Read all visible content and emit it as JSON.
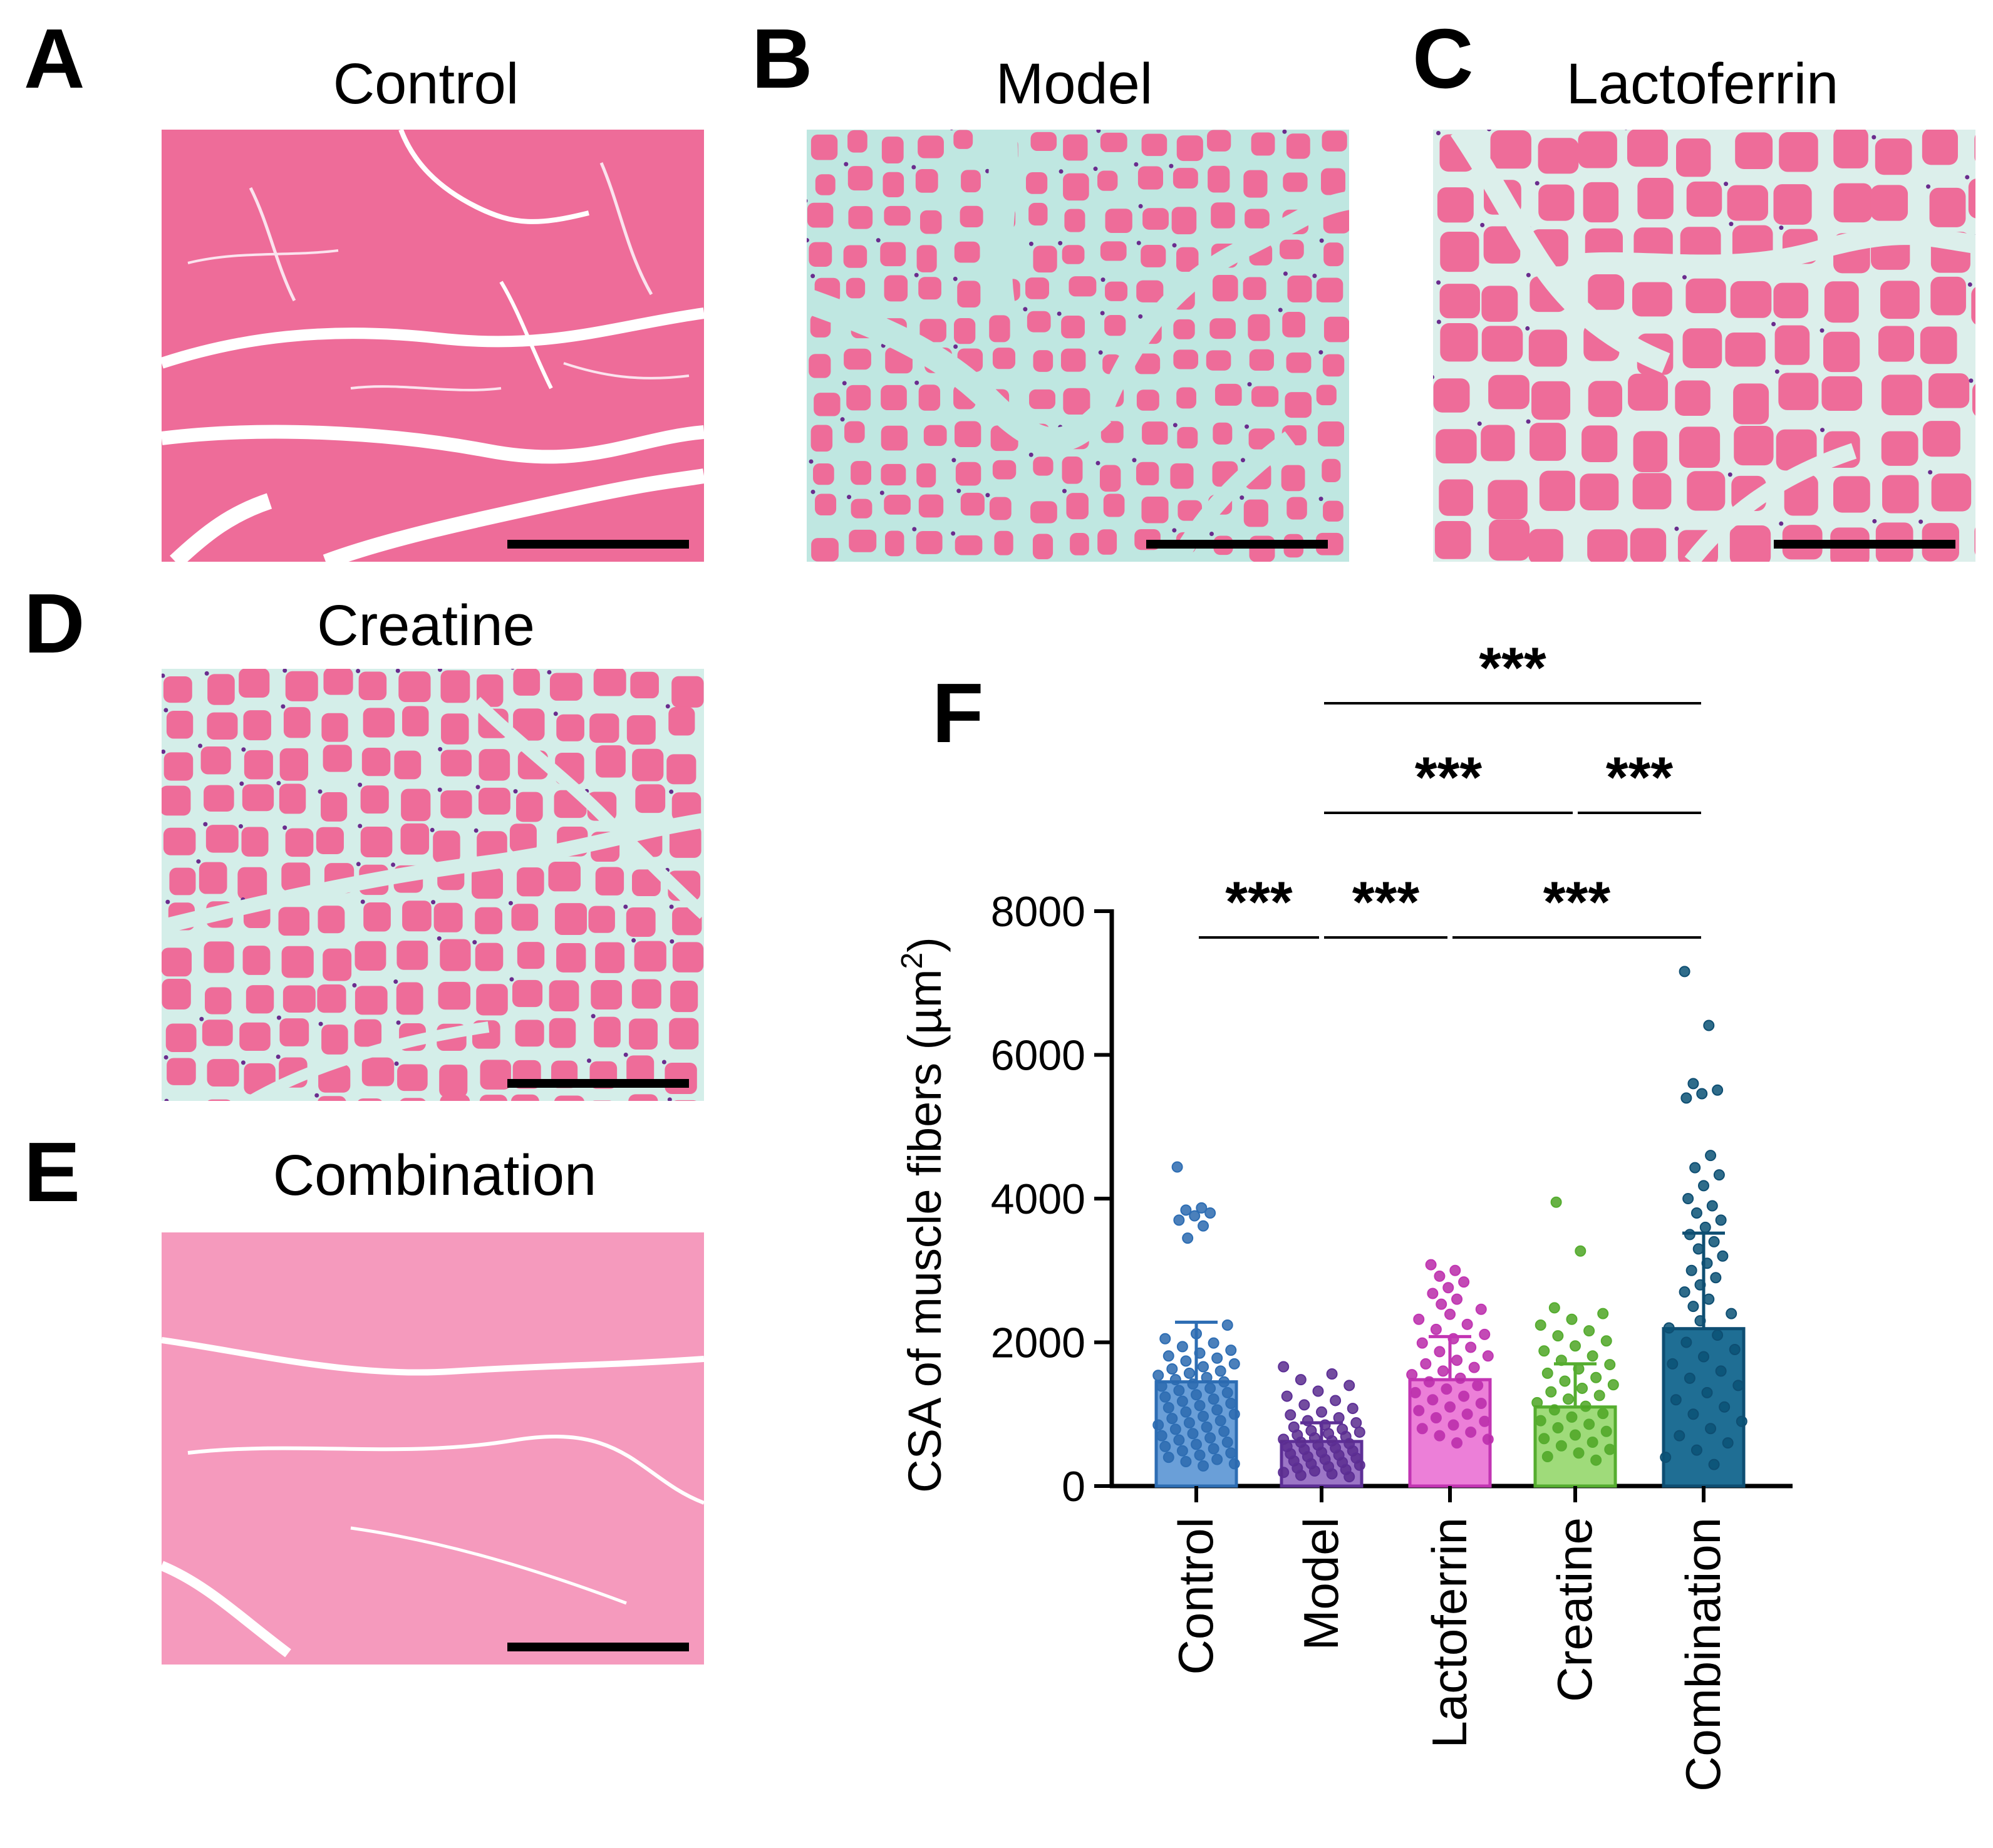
{
  "panels": [
    {
      "letter": "A",
      "title": "Control"
    },
    {
      "letter": "B",
      "title": "Model"
    },
    {
      "letter": "C",
      "title": "Lactoferrin"
    },
    {
      "letter": "D",
      "title": "Creatine"
    },
    {
      "letter": "E",
      "title": "Combination"
    }
  ],
  "chart_panel_letter": "F",
  "colors": {
    "tissue_pink": "#ee6c99",
    "tissue_pink_light": "#f59abd",
    "cell_border": "#fbe3ee",
    "interstitial_control": "#ffffff",
    "interstitial_model": "#bfe7e1",
    "interstitial_lactoferrin": "#dcefeb",
    "interstitial_creatine": "#d4eee9",
    "nuclei": "#6a2c8e",
    "scale_bar": "#000000"
  },
  "chart_data": {
    "type": "bar",
    "categories": [
      "Control",
      "Model",
      "Lactoferrin",
      "Creatine",
      "Combination"
    ],
    "values": [
      1450,
      620,
      1480,
      1100,
      2190
    ],
    "error_upper": [
      2280,
      880,
      2080,
      1700,
      3520
    ],
    "ylabel_main": "CSA of muscle fibers (µm",
    "ylabel_sup": "2",
    "ylabel_tail": ")",
    "ylim": [
      0,
      8000
    ],
    "yticks": [
      "0",
      "2000",
      "4000",
      "6000",
      "8000"
    ],
    "colors": {
      "fill": [
        "#6a9fd8",
        "#9c76c6",
        "#ec7fd8",
        "#9fdb7a",
        "#1f6e94"
      ],
      "stroke": [
        "#2d6db3",
        "#5d2f96",
        "#c235b3",
        "#55ad2f",
        "#0e4e72"
      ],
      "point": [
        "#2c6aaf",
        "#5a2d8e",
        "#b82aa8",
        "#4ea524",
        "#0b5275"
      ]
    },
    "points": [
      [
        4440,
        3870,
        3840,
        3800,
        3760,
        3700,
        3620,
        3450,
        2240,
        2120,
        2050,
        1990,
        1940,
        1890,
        1850,
        1810,
        1780,
        1740,
        1700,
        1660,
        1630,
        1600,
        1570,
        1540,
        1510,
        1480,
        1450,
        1420,
        1390,
        1360,
        1330,
        1300,
        1270,
        1240,
        1210,
        1180,
        1150,
        1120,
        1090,
        1060,
        1030,
        1000,
        970,
        940,
        910,
        880,
        850,
        820,
        790,
        760,
        730,
        700,
        670,
        640,
        610,
        580,
        550,
        520,
        490,
        460,
        430,
        400,
        370,
        340,
        310,
        280
      ],
      [
        1660,
        1560,
        1480,
        1400,
        1320,
        1250,
        1190,
        1130,
        1080,
        1030,
        990,
        950,
        910,
        880,
        850,
        820,
        790,
        770,
        750,
        730,
        710,
        690,
        670,
        650,
        630,
        610,
        590,
        570,
        550,
        530,
        510,
        490,
        470,
        450,
        430,
        410,
        390,
        370,
        350,
        330,
        310,
        290,
        270,
        250,
        230,
        210,
        190,
        170,
        150,
        130
      ],
      [
        3080,
        3000,
        2920,
        2840,
        2760,
        2680,
        2600,
        2530,
        2460,
        2390,
        2320,
        2250,
        2180,
        2110,
        2050,
        1990,
        1930,
        1870,
        1810,
        1750,
        1700,
        1650,
        1600,
        1550,
        1500,
        1450,
        1400,
        1350,
        1300,
        1250,
        1200,
        1150,
        1100,
        1050,
        1000,
        950,
        900,
        850,
        800,
        750,
        700,
        650,
        600
      ],
      [
        3950,
        3270,
        2480,
        2400,
        2320,
        2240,
        2160,
        2090,
        2020,
        1950,
        1880,
        1810,
        1750,
        1690,
        1630,
        1570,
        1510,
        1460,
        1410,
        1360,
        1310,
        1260,
        1210,
        1160,
        1110,
        1060,
        1010,
        960,
        910,
        860,
        810,
        760,
        710,
        660,
        610,
        560,
        510,
        460,
        410,
        360
      ],
      [
        7160,
        6410,
        5600,
        5510,
        5460,
        5400,
        4600,
        4430,
        4330,
        4180,
        4000,
        3900,
        3800,
        3700,
        3600,
        3500,
        3400,
        3300,
        3200,
        3100,
        3000,
        2900,
        2800,
        2700,
        2600,
        2500,
        2400,
        2300,
        2200,
        2100,
        2000,
        1900,
        1800,
        1700,
        1600,
        1500,
        1400,
        1300,
        1200,
        1100,
        1000,
        900,
        800,
        700,
        600,
        500,
        400,
        300
      ]
    ],
    "significance": [
      {
        "label": "***",
        "from": 0,
        "to": 1,
        "level": 0
      },
      {
        "label": "***",
        "from": 1,
        "to": 2,
        "level": 0
      },
      {
        "label": "***",
        "from": 2,
        "to": 4,
        "level": 0
      },
      {
        "label": "***",
        "from": 1,
        "to": 3,
        "level": 1
      },
      {
        "label": "***",
        "from": 3,
        "to": 4,
        "level": 1
      },
      {
        "label": "***",
        "from": 1,
        "to": 4,
        "level": 2
      }
    ]
  }
}
